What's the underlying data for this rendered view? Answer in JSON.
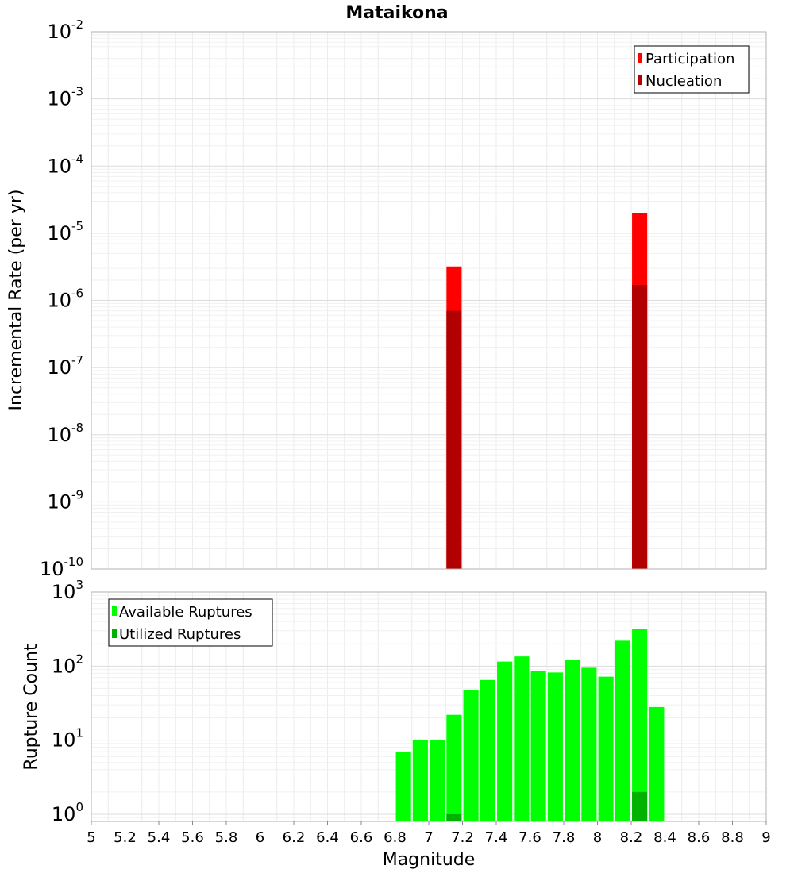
{
  "chart_data": [
    {
      "type": "bar",
      "title": "Mataikona",
      "xlabel": "",
      "ylabel": "Incremental Rate (per yr)",
      "yscale": "log",
      "ylim": [
        1e-10,
        0.01
      ],
      "xlim": [
        5,
        9
      ],
      "y_ticks": [
        {
          "base": "10",
          "exp": "-10"
        },
        {
          "base": "10",
          "exp": "-9"
        },
        {
          "base": "10",
          "exp": "-8"
        },
        {
          "base": "10",
          "exp": "-7"
        },
        {
          "base": "10",
          "exp": "-6"
        },
        {
          "base": "10",
          "exp": "-5"
        },
        {
          "base": "10",
          "exp": "-4"
        },
        {
          "base": "10",
          "exp": "-3"
        },
        {
          "base": "10",
          "exp": "-2"
        }
      ],
      "grid": true,
      "legend_position": "top-right",
      "bar_width": 0.09,
      "series": [
        {
          "name": "Participation",
          "color": "#ff0000",
          "x": [
            7.15,
            8.25
          ],
          "values": [
            3.2e-06,
            2e-05
          ]
        },
        {
          "name": "Nucleation",
          "color": "#b20000",
          "x": [
            7.15,
            8.25
          ],
          "values": [
            7e-07,
            1.7e-06
          ]
        }
      ]
    },
    {
      "type": "bar",
      "title": "",
      "xlabel": "Magnitude",
      "ylabel": "Rupture Count",
      "yscale": "log",
      "ylim": [
        0.8,
        1000
      ],
      "xlim": [
        5,
        9
      ],
      "x_ticks": [
        "5",
        "5.2",
        "5.4",
        "5.6",
        "5.8",
        "6",
        "6.2",
        "6.4",
        "6.6",
        "6.8",
        "7",
        "7.2",
        "7.4",
        "7.6",
        "7.8",
        "8",
        "8.2",
        "8.4",
        "8.6",
        "8.8",
        "9"
      ],
      "y_ticks": [
        {
          "base": "10",
          "exp": "0",
          "value": 1
        },
        {
          "base": "10",
          "exp": "1",
          "value": 10
        },
        {
          "base": "10",
          "exp": "2",
          "value": 100
        },
        {
          "base": "10",
          "exp": "3",
          "value": 1000
        }
      ],
      "grid": true,
      "legend_position": "top-left",
      "bar_width": 0.09,
      "series": [
        {
          "name": "Available Ruptures",
          "color": "#00ff00",
          "x": [
            6.85,
            6.95,
            7.05,
            7.15,
            7.25,
            7.35,
            7.45,
            7.55,
            7.65,
            7.75,
            7.85,
            7.95,
            8.05,
            8.15,
            8.25,
            8.35
          ],
          "values": [
            7,
            10,
            10,
            22,
            48,
            65,
            115,
            135,
            85,
            82,
            122,
            95,
            72,
            220,
            320,
            28
          ]
        },
        {
          "name": "Utilized Ruptures",
          "color": "#00b200",
          "x": [
            7.15,
            8.25
          ],
          "values": [
            1,
            2
          ]
        }
      ]
    }
  ]
}
